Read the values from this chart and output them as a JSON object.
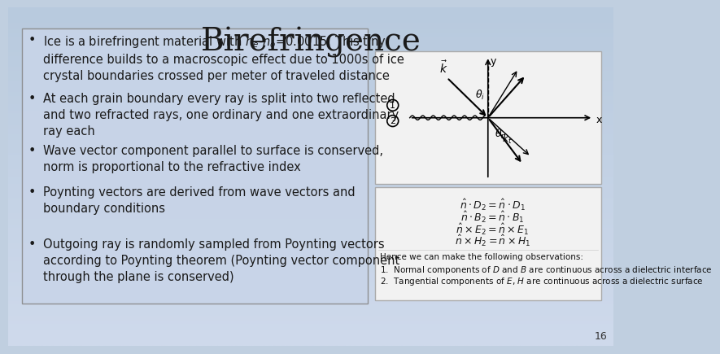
{
  "title": "Birefringence",
  "title_fontsize": 28,
  "title_font": "serif",
  "bullet_texts": [
    "Ice is a birefringent material with $n_e$-$n_o$=0.0015. This tiny\ndifference builds to a macroscopic effect due to 1000s of ice\ncrystal boundaries crossed per meter of traveled distance",
    "At each grain boundary every ray is split into two reflected\nand two refracted rays, one ordinary and one extraordinary\nray each",
    "Wave vector component parallel to surface is conserved,\nnorm is proportional to the refractive index",
    "Poynting vectors are derived from wave vectors and\nboundary conditions",
    "Outgoing ray is randomly sampled from Poynting vectors\naccording to Poynting theorem (Poynting vector component\nthrough the plane is conserved)"
  ],
  "bullet_y_starts": [
    498,
    405,
    322,
    255,
    172
  ],
  "page_number": "16",
  "font_size_bullets": 10.5,
  "eq_lines": [
    "$\\hat{n} \\cdot D_2 = \\hat{n} \\cdot D_1$",
    "$\\hat{n} \\cdot B_2 = \\hat{n} \\cdot B_1$",
    "$\\hat{n} \\times E_2 = \\hat{n} \\times E_1$",
    "$\\hat{n} \\times H_2 = \\hat{n} \\times H_1$"
  ],
  "obs1": "1.  Normal components of $D$ and $B$ are continuous across a dielectric interface",
  "obs2": "2.  Tangential components of $E$, $H$ are continuous across a dielectric surface",
  "obs_header": "Hence we can make the following observations:"
}
